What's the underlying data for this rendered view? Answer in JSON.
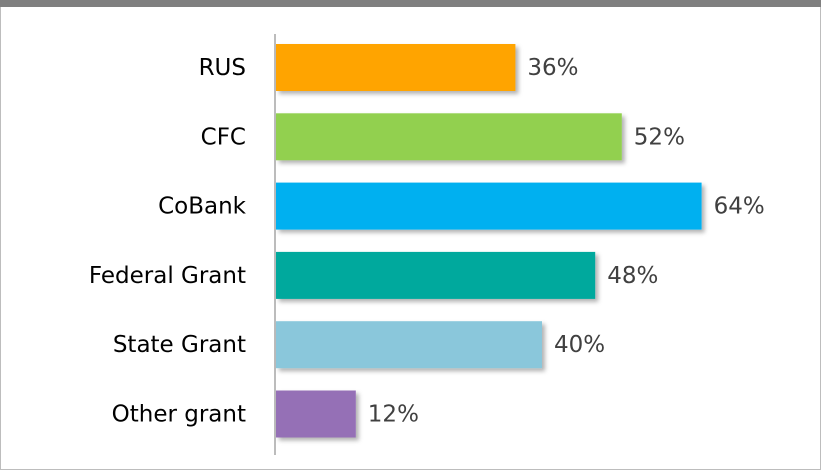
{
  "chart_data": {
    "type": "bar",
    "categories": [
      "RUS",
      "CFC",
      "CoBank",
      "Federal Grant",
      "State Grant",
      "Other grant"
    ],
    "values": [
      36,
      52,
      64,
      48,
      40,
      12
    ],
    "value_labels": [
      "36%",
      "52%",
      "64%",
      "48%",
      "40%",
      "12%"
    ],
    "colors": [
      "#ffa400",
      "#92d050",
      "#00b0f0",
      "#00a99d",
      "#8ac7db",
      "#9570b6"
    ]
  }
}
